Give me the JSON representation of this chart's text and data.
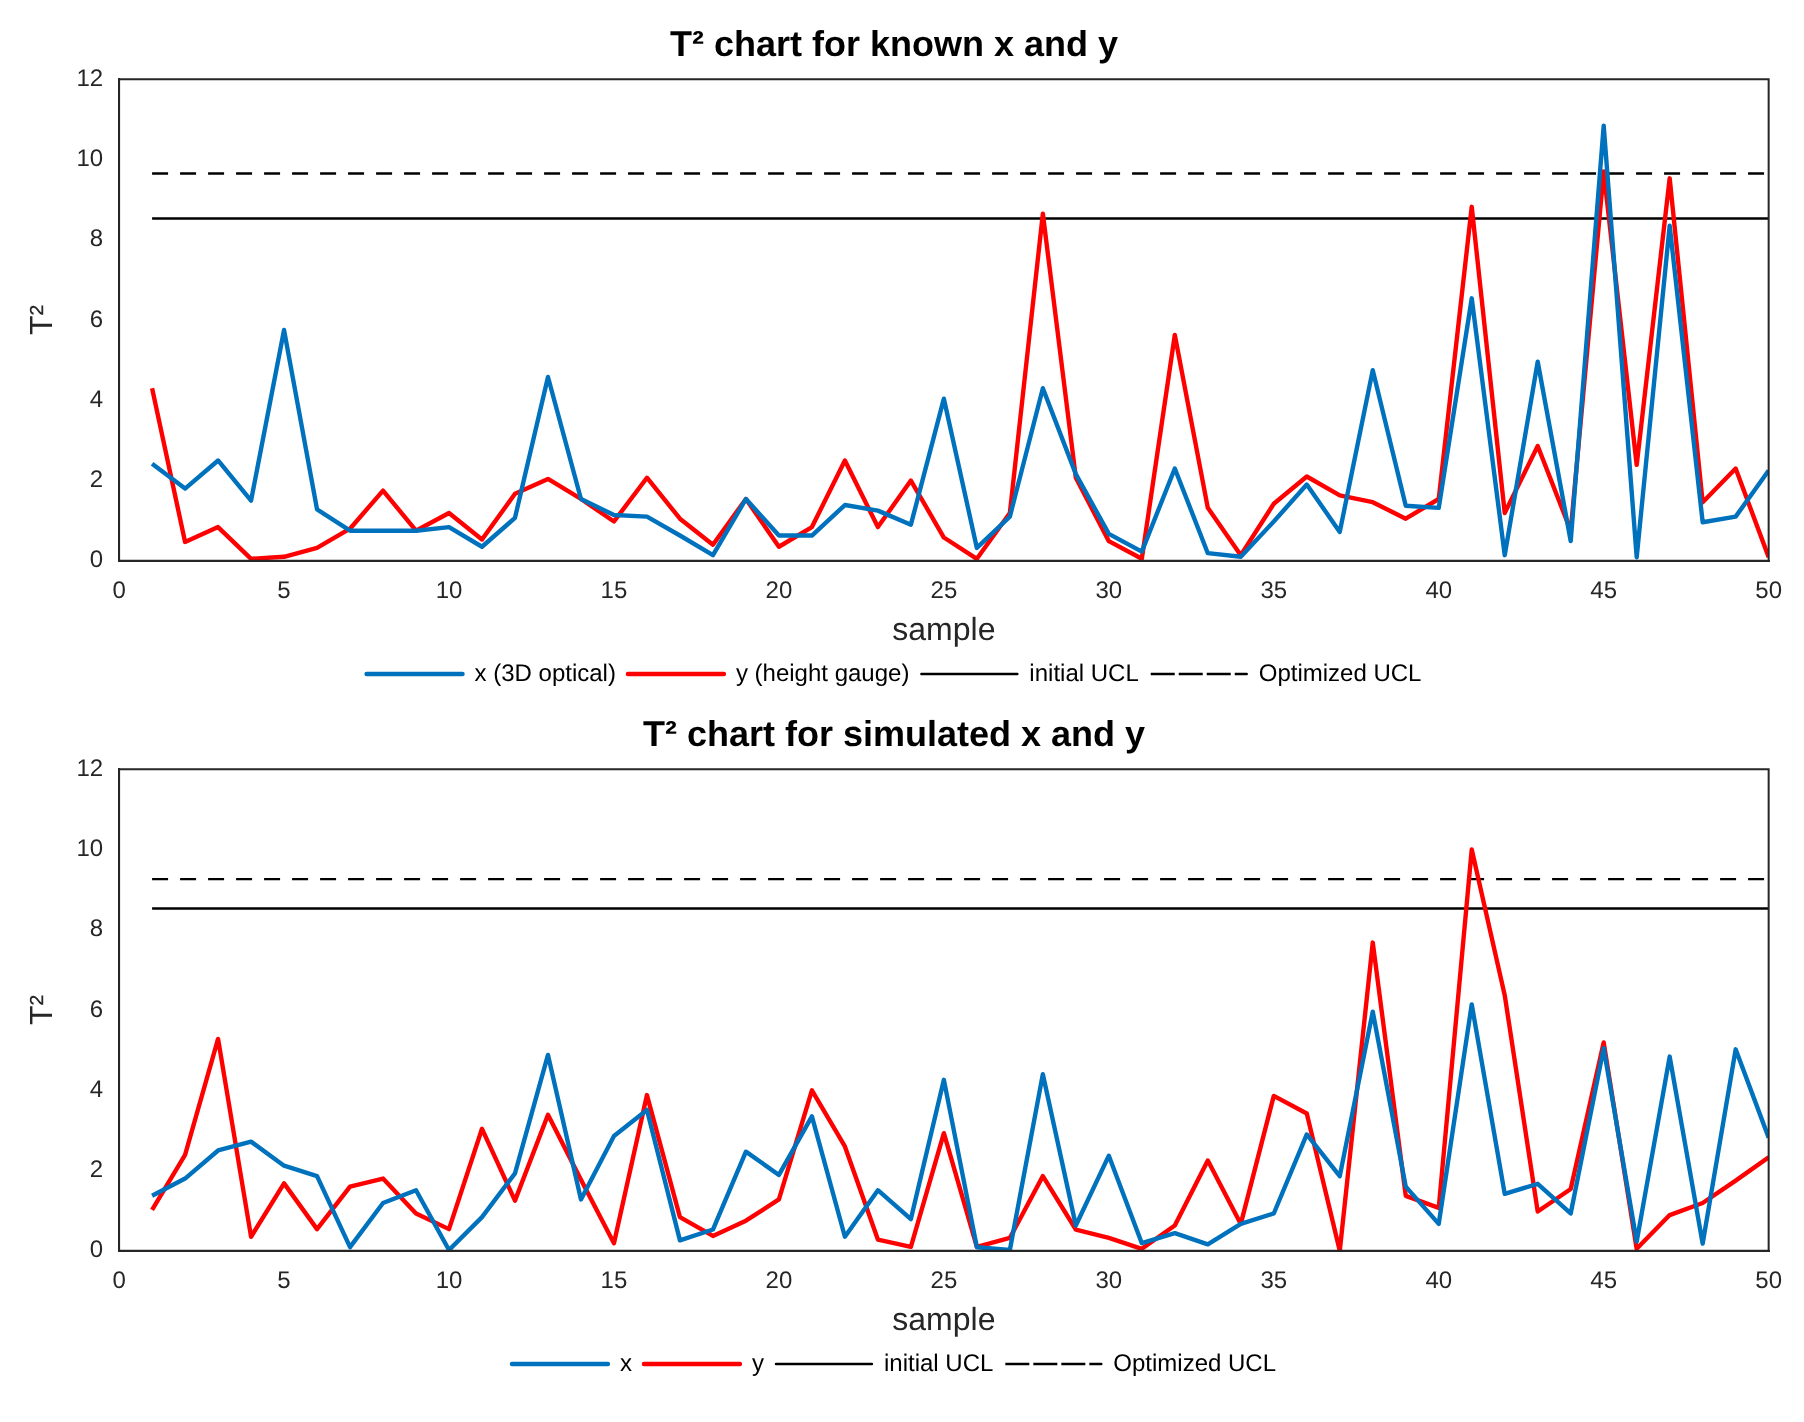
{
  "chart_data": [
    {
      "type": "line",
      "title": "T² chart for known x and y",
      "xlabel": "sample",
      "ylabel": "T²",
      "x": [
        1,
        2,
        3,
        4,
        5,
        6,
        7,
        8,
        9,
        10,
        11,
        12,
        13,
        14,
        15,
        16,
        17,
        18,
        19,
        20,
        21,
        22,
        23,
        24,
        25,
        26,
        27,
        28,
        29,
        30,
        31,
        32,
        33,
        34,
        35,
        36,
        37,
        38,
        39,
        40,
        41,
        42,
        43,
        44,
        45,
        46,
        47,
        48,
        49,
        50
      ],
      "xlim": [
        0,
        50
      ],
      "xticks": [
        0,
        5,
        10,
        15,
        20,
        25,
        30,
        35,
        40,
        45,
        50
      ],
      "ylim": [
        0,
        12
      ],
      "yticks": [
        0,
        2,
        4,
        6,
        8,
        10,
        12
      ],
      "grid": false,
      "legend": "bottom",
      "marker": "none",
      "series": [
        {
          "name": "x (3D optical)",
          "color": "#0072bd",
          "values": [
            2.42,
            1.8,
            2.5,
            1.5,
            5.75,
            1.28,
            0.75,
            0.75,
            0.75,
            0.84,
            0.35,
            1.07,
            4.58,
            1.54,
            1.14,
            1.1,
            0.63,
            0.14,
            1.54,
            0.63,
            0.63,
            1.39,
            1.25,
            0.9,
            4.04,
            0.32,
            1.1,
            4.3,
            2.16,
            0.67,
            0.23,
            2.3,
            0.19,
            0.1,
            0.98,
            1.9,
            0.72,
            4.75,
            1.37,
            1.32,
            6.54,
            0.14,
            4.96,
            0.49,
            10.84,
            0.09,
            8.35,
            0.96,
            1.1,
            2.25
          ]
        },
        {
          "name": "y (height gauge)",
          "color": "#ff0000",
          "values": [
            4.3,
            0.47,
            0.84,
            0.05,
            0.1,
            0.32,
            0.8,
            1.75,
            0.75,
            1.19,
            0.53,
            1.67,
            2.04,
            1.54,
            0.98,
            2.07,
            1.05,
            0.4,
            1.54,
            0.35,
            0.84,
            2.5,
            0.84,
            2.0,
            0.58,
            0.05,
            1.19,
            8.65,
            2.07,
            0.49,
            0.05,
            5.63,
            1.32,
            0.14,
            1.42,
            2.1,
            1.63,
            1.46,
            1.05,
            1.54,
            8.82,
            1.19,
            2.86,
            0.75,
            9.7,
            2.39,
            9.53,
            1.46,
            2.3,
            0.09
          ]
        },
        {
          "name": "initial UCL",
          "color": "#000000",
          "line_style": "solid",
          "values": [
            8.53,
            8.53,
            8.53,
            8.53,
            8.53,
            8.53,
            8.53,
            8.53,
            8.53,
            8.53,
            8.53,
            8.53,
            8.53,
            8.53,
            8.53,
            8.53,
            8.53,
            8.53,
            8.53,
            8.53,
            8.53,
            8.53,
            8.53,
            8.53,
            8.53,
            8.53,
            8.53,
            8.53,
            8.53,
            8.53,
            8.53,
            8.53,
            8.53,
            8.53,
            8.53,
            8.53,
            8.53,
            8.53,
            8.53,
            8.53,
            8.53,
            8.53,
            8.53,
            8.53,
            8.53,
            8.53,
            8.53,
            8.53,
            8.53,
            8.53
          ]
        },
        {
          "name": "Optimized UCL",
          "color": "#000000",
          "line_style": "dashed",
          "values": [
            9.65,
            9.65,
            9.65,
            9.65,
            9.65,
            9.65,
            9.65,
            9.65,
            9.65,
            9.65,
            9.65,
            9.65,
            9.65,
            9.65,
            9.65,
            9.65,
            9.65,
            9.65,
            9.65,
            9.65,
            9.65,
            9.65,
            9.65,
            9.65,
            9.65,
            9.65,
            9.65,
            9.65,
            9.65,
            9.65,
            9.65,
            9.65,
            9.65,
            9.65,
            9.65,
            9.65,
            9.65,
            9.65,
            9.65,
            9.65,
            9.65,
            9.65,
            9.65,
            9.65,
            9.65,
            9.65,
            9.65,
            9.65,
            9.65,
            9.65
          ]
        }
      ]
    },
    {
      "type": "line",
      "title": "T² chart for simulated x and y",
      "xlabel": "sample",
      "ylabel": "T²",
      "x": [
        1,
        2,
        3,
        4,
        5,
        6,
        7,
        8,
        9,
        10,
        11,
        12,
        13,
        14,
        15,
        16,
        17,
        18,
        19,
        20,
        21,
        22,
        23,
        24,
        25,
        26,
        27,
        28,
        29,
        30,
        31,
        32,
        33,
        34,
        35,
        36,
        37,
        38,
        39,
        40,
        41,
        42,
        43,
        44,
        45,
        46,
        47,
        48,
        49,
        50
      ],
      "xlim": [
        0,
        50
      ],
      "xticks": [
        0,
        5,
        10,
        15,
        20,
        25,
        30,
        35,
        40,
        45,
        50
      ],
      "ylim": [
        0,
        12
      ],
      "yticks": [
        0,
        2,
        4,
        6,
        8,
        10,
        12
      ],
      "grid": false,
      "legend": "bottom",
      "marker": "none",
      "series": [
        {
          "name": "x",
          "color": "#0072bd",
          "values": [
            1.37,
            1.8,
            2.5,
            2.72,
            2.12,
            1.86,
            0.09,
            1.19,
            1.51,
            0.02,
            0.84,
            1.93,
            4.88,
            1.28,
            2.86,
            3.51,
            0.26,
            0.53,
            2.47,
            1.89,
            3.35,
            0.35,
            1.51,
            0.79,
            4.26,
            0.09,
            0.02,
            4.4,
            0.63,
            2.37,
            0.19,
            0.44,
            0.16,
            0.67,
            0.93,
            2.9,
            1.86,
            5.96,
            1.6,
            0.67,
            6.14,
            1.42,
            1.67,
            0.93,
            5.05,
            0.23,
            4.84,
            0.18,
            5.02,
            2.82
          ]
        },
        {
          "name": "y",
          "color": "#ff0000",
          "values": [
            1.02,
            2.39,
            5.28,
            0.35,
            1.68,
            0.54,
            1.6,
            1.8,
            0.93,
            0.54,
            3.04,
            1.25,
            3.39,
            1.77,
            0.19,
            3.88,
            0.84,
            0.37,
            0.75,
            1.28,
            4.0,
            2.6,
            0.28,
            0.1,
            2.93,
            0.1,
            0.32,
            1.86,
            0.53,
            0.32,
            0.05,
            0.63,
            2.25,
            0.67,
            3.86,
            3.42,
            0,
            7.68,
            1.37,
            1.07,
            10.0,
            6.37,
            0.98,
            1.54,
            5.19,
            0.05,
            0.89,
            1.19,
            1.75,
            2.33
          ]
        },
        {
          "name": "initial UCL",
          "color": "#000000",
          "line_style": "solid",
          "values": [
            8.53,
            8.53,
            8.53,
            8.53,
            8.53,
            8.53,
            8.53,
            8.53,
            8.53,
            8.53,
            8.53,
            8.53,
            8.53,
            8.53,
            8.53,
            8.53,
            8.53,
            8.53,
            8.53,
            8.53,
            8.53,
            8.53,
            8.53,
            8.53,
            8.53,
            8.53,
            8.53,
            8.53,
            8.53,
            8.53,
            8.53,
            8.53,
            8.53,
            8.53,
            8.53,
            8.53,
            8.53,
            8.53,
            8.53,
            8.53,
            8.53,
            8.53,
            8.53,
            8.53,
            8.53,
            8.53,
            8.53,
            8.53,
            8.53,
            8.53
          ]
        },
        {
          "name": "Optimized UCL",
          "color": "#000000",
          "line_style": "dashed",
          "values": [
            9.26,
            9.26,
            9.26,
            9.26,
            9.26,
            9.26,
            9.26,
            9.26,
            9.26,
            9.26,
            9.26,
            9.26,
            9.26,
            9.26,
            9.26,
            9.26,
            9.26,
            9.26,
            9.26,
            9.26,
            9.26,
            9.26,
            9.26,
            9.26,
            9.26,
            9.26,
            9.26,
            9.26,
            9.26,
            9.26,
            9.26,
            9.26,
            9.26,
            9.26,
            9.26,
            9.26,
            9.26,
            9.26,
            9.26,
            9.26,
            9.26,
            9.26,
            9.26,
            9.26,
            9.26,
            9.26,
            9.26,
            9.26,
            9.26,
            9.26
          ]
        }
      ]
    }
  ]
}
